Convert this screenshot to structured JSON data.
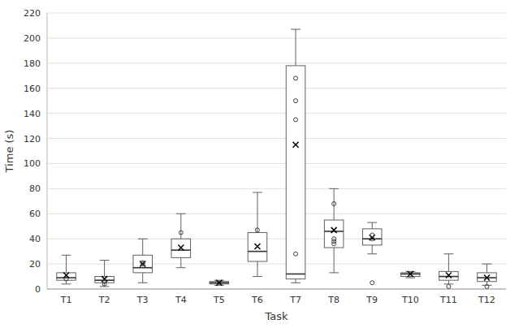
{
  "chart_data": {
    "type": "box",
    "xlabel": "Task",
    "ylabel": "Time (s)",
    "categories": [
      "T1",
      "T2",
      "T3",
      "T4",
      "T5",
      "T6",
      "T7",
      "T8",
      "T9",
      "T10",
      "T11",
      "T12"
    ],
    "boxes": [
      {
        "whislo": 4,
        "q1": 7,
        "med": 9,
        "q3": 13,
        "whishi": 27,
        "fliers": [
          8
        ],
        "mean": 11
      },
      {
        "whislo": 2,
        "q1": 5,
        "med": 7,
        "q3": 10,
        "whishi": 23,
        "fliers": [
          4,
          6
        ],
        "mean": 8
      },
      {
        "whislo": 5,
        "q1": 13,
        "med": 17,
        "q3": 27,
        "whishi": 40,
        "fliers": [
          20,
          21
        ],
        "mean": 20
      },
      {
        "whislo": 17,
        "q1": 25,
        "med": 31,
        "q3": 40,
        "whishi": 60,
        "fliers": [
          45
        ],
        "mean": 33
      },
      {
        "whislo": 3,
        "q1": 4,
        "med": 5,
        "q3": 6,
        "whishi": 7,
        "fliers": [],
        "mean": 5
      },
      {
        "whislo": 10,
        "q1": 22,
        "med": 30,
        "q3": 45,
        "whishi": 77,
        "fliers": [
          47
        ],
        "mean": 34
      },
      {
        "whislo": 5,
        "q1": 8,
        "med": 12,
        "q3": 178,
        "whishi": 207,
        "fliers": [
          168,
          150,
          135,
          28
        ],
        "mean": 115
      },
      {
        "whislo": 13,
        "q1": 33,
        "med": 46,
        "q3": 55,
        "whishi": 80,
        "fliers": [
          68,
          40,
          36,
          38
        ],
        "mean": 47
      },
      {
        "whislo": 28,
        "q1": 35,
        "med": 40,
        "q3": 48,
        "whishi": 53,
        "fliers": [
          5,
          40,
          43
        ],
        "mean": 41
      },
      {
        "whislo": 9,
        "q1": 10,
        "med": 12,
        "q3": 13,
        "whishi": 14,
        "fliers": [],
        "mean": 12
      },
      {
        "whislo": 4,
        "q1": 7,
        "med": 10,
        "q3": 14,
        "whishi": 28,
        "fliers": [
          2
        ],
        "mean": 11
      },
      {
        "whislo": 3,
        "q1": 6,
        "med": 9,
        "q3": 13,
        "whishi": 20,
        "fliers": [
          2
        ],
        "mean": 9
      }
    ],
    "ylim": [
      0,
      220
    ],
    "yticks": [
      0,
      20,
      40,
      60,
      80,
      100,
      120,
      140,
      160,
      180,
      200,
      220
    ],
    "grid": true,
    "color": "#606060"
  }
}
